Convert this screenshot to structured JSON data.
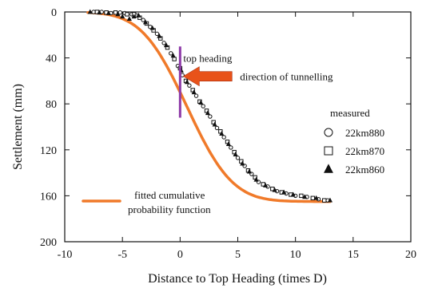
{
  "chart_data": {
    "type": "scatter",
    "xlabel": "Distance to Top Heading (times D)",
    "ylabel": "Settlement (mm)",
    "xlim": [
      -10,
      20
    ],
    "ylim": [
      0,
      200
    ],
    "y_inverted": true,
    "xticks": [
      -10,
      -5,
      0,
      5,
      10,
      15,
      20
    ],
    "yticks": [
      0,
      40,
      80,
      120,
      160,
      200
    ],
    "grid": false,
    "legend_title": "measured",
    "legend_position": "right",
    "series": [
      {
        "name": "22km880",
        "marker": "circle",
        "points": [
          [
            -7.5,
            0
          ],
          [
            -6.8,
            0
          ],
          [
            -6,
            1
          ],
          [
            -5.2,
            0.5
          ],
          [
            -4.8,
            1
          ],
          [
            -4.2,
            2
          ],
          [
            -3.8,
            3
          ],
          [
            -3.2,
            7
          ],
          [
            -2.6,
            13
          ],
          [
            -2,
            19
          ],
          [
            -1.4,
            27
          ],
          [
            -0.8,
            36
          ],
          [
            -0.2,
            47
          ],
          [
            0.2,
            55
          ],
          [
            0.8,
            64
          ],
          [
            1.4,
            73
          ],
          [
            2,
            82
          ],
          [
            2.6,
            91
          ],
          [
            3.2,
            101
          ],
          [
            3.8,
            109
          ],
          [
            4.4,
            118
          ],
          [
            5,
            127
          ],
          [
            5.6,
            134
          ],
          [
            6.2,
            141
          ],
          [
            6.8,
            148
          ],
          [
            7.6,
            152
          ],
          [
            8.4,
            156
          ],
          [
            9.2,
            158
          ],
          [
            10,
            160
          ],
          [
            11,
            161
          ],
          [
            12,
            163
          ],
          [
            12.8,
            164
          ]
        ]
      },
      {
        "name": "22km870",
        "marker": "square",
        "points": [
          [
            -7.2,
            0
          ],
          [
            -6.4,
            0.5
          ],
          [
            -5.6,
            0.5
          ],
          [
            -4.6,
            2
          ],
          [
            -4,
            2
          ],
          [
            -3.5,
            5
          ],
          [
            -2.9,
            10
          ],
          [
            -2.3,
            16
          ],
          [
            -1.7,
            23
          ],
          [
            -1.1,
            31
          ],
          [
            -0.5,
            41
          ],
          [
            0,
            49
          ],
          [
            0.5,
            60
          ],
          [
            1.1,
            68
          ],
          [
            1.7,
            78
          ],
          [
            2.3,
            86
          ],
          [
            2.9,
            96
          ],
          [
            3.5,
            104
          ],
          [
            4.1,
            113
          ],
          [
            4.7,
            122
          ],
          [
            5.3,
            130
          ],
          [
            5.9,
            138
          ],
          [
            6.5,
            144
          ],
          [
            7.2,
            150
          ],
          [
            8,
            154
          ],
          [
            8.8,
            157
          ],
          [
            9.6,
            159
          ],
          [
            10.5,
            160
          ],
          [
            11.5,
            162
          ],
          [
            12.5,
            164
          ]
        ]
      },
      {
        "name": "22km860",
        "marker": "triangle",
        "points": [
          [
            -7.8,
            0
          ],
          [
            -7,
            0.5
          ],
          [
            -6.2,
            1
          ],
          [
            -5.4,
            2
          ],
          [
            -5,
            4
          ],
          [
            -4.4,
            6
          ],
          [
            -4,
            4
          ],
          [
            -3.6,
            3
          ],
          [
            -3,
            9
          ],
          [
            -2.4,
            14
          ],
          [
            -1.8,
            21
          ],
          [
            -1.2,
            29
          ],
          [
            -0.6,
            38
          ],
          [
            0.1,
            51
          ],
          [
            0.6,
            61
          ],
          [
            1.2,
            70
          ],
          [
            1.8,
            79
          ],
          [
            2.4,
            88
          ],
          [
            3,
            98
          ],
          [
            3.6,
            106
          ],
          [
            4.2,
            115
          ],
          [
            4.8,
            124
          ],
          [
            5.4,
            132
          ],
          [
            6,
            139
          ],
          [
            6.6,
            146
          ],
          [
            7.4,
            151
          ],
          [
            8.2,
            155
          ],
          [
            9,
            157
          ],
          [
            9.8,
            159
          ],
          [
            10.8,
            161
          ],
          [
            11.8,
            162
          ],
          [
            13,
            164
          ]
        ]
      }
    ],
    "fitted_curve": {
      "name": "fitted cumulative probability function",
      "mean": 0.6,
      "sigma": 3.1,
      "max": 165,
      "x_range": [
        -8,
        13
      ]
    },
    "annotations": {
      "top_heading": "top heading",
      "direction": "direction of tunnelling"
    }
  },
  "colors": {
    "fit": "#f07a2a",
    "marker": "#111111",
    "vline": "#8e3aa8",
    "arrow": "#e8521a"
  }
}
